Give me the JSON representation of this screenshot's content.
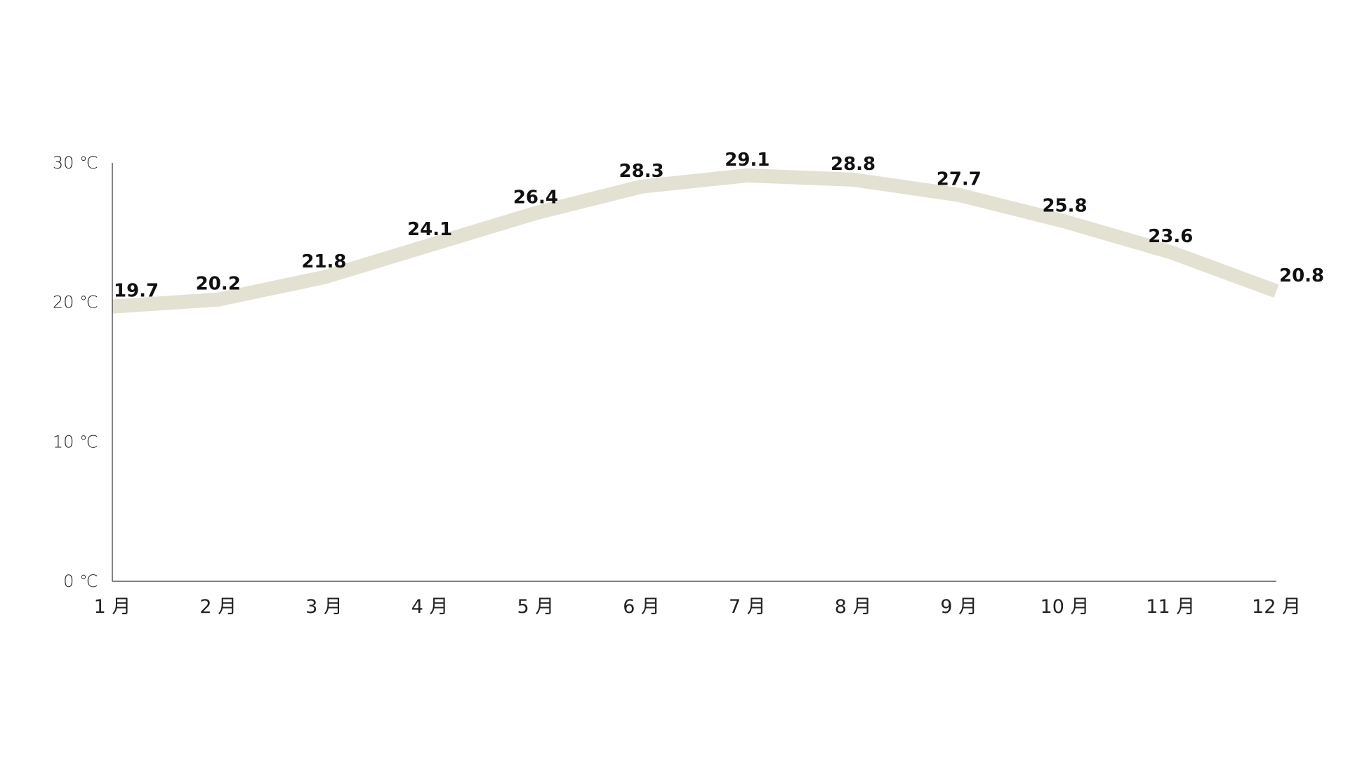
{
  "chart_data": {
    "type": "line",
    "categories": [
      "1 月",
      "2 月",
      "3 月",
      "4 月",
      "5 月",
      "6 月",
      "7 月",
      "8 月",
      "9 月",
      "10 月",
      "11 月",
      "12 月"
    ],
    "series": [
      {
        "values": [
          19.7,
          20.2,
          21.8,
          24.1,
          26.4,
          28.3,
          29.1,
          28.8,
          27.7,
          25.8,
          23.6,
          20.8
        ],
        "labels": [
          "19.7",
          "20.2",
          "21.8",
          "24.1",
          "26.4",
          "28.3",
          "29.1",
          "28.8",
          "27.7",
          "25.8",
          "23.6",
          "20.8"
        ],
        "color": "#e3e1d1"
      }
    ],
    "ylim": [
      0,
      30
    ],
    "y_ticks": [
      0,
      10,
      20,
      30
    ],
    "y_tick_labels": [
      "0 ℃",
      "10 ℃",
      "20 ℃",
      "30 ℃"
    ],
    "title": "",
    "xlabel": "",
    "ylabel": "",
    "grid": false,
    "axis_color": "#333333"
  }
}
